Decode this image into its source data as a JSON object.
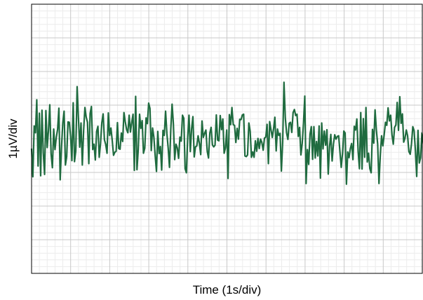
{
  "chart_data": {
    "type": "line",
    "title": "",
    "xlabel": "Time (1s/div)",
    "ylabel": "1µV/div",
    "grid": true,
    "major_divisions": {
      "x": 10,
      "y": 8
    },
    "minor_per_major": 5,
    "xlim": [
      0,
      10
    ],
    "ylim": [
      -4,
      4
    ],
    "colors": {
      "line": "#1f6b3f",
      "major_grid": "#c8c8c8",
      "minor_grid": "#ececec",
      "frame": "#000000"
    },
    "series": [
      {
        "x_step": 0.0333,
        "values": [
          -0.29,
          -1.13,
          0.38,
          0.18,
          1.16,
          -0.81,
          0.76,
          -1.1,
          0.85,
          -0.42,
          -1.06,
          0.84,
          -0.26,
          0.25,
          1.01,
          -0.45,
          -0.86,
          0.29,
          -0.32,
          0.04,
          0.28,
          0.91,
          -1.22,
          -0.25,
          0.48,
          0.82,
          -0.78,
          -0.53,
          0.5,
          0.49,
          0.07,
          -0.65,
          1.07,
          -0.68,
          -0.36,
          1.55,
          0.64,
          -0.25,
          0.47,
          -0.78,
          0.24,
          0.93,
          0.64,
          0.49,
          -0.74,
          0.75,
          0.96,
          -0.32,
          -0.16,
          -0.63,
          0.22,
          0.37,
          -0.55,
          -0.14,
          0.48,
          0.74,
          -0.03,
          -0.17,
          -0.43,
          0.77,
          0.1,
          0.32,
          -0.05,
          -0.49,
          -0.4,
          -0.37,
          0.48,
          -0.29,
          -0.31,
          0.17,
          -0.08,
          0.78,
          0.51,
          0.28,
          0.18,
          0.7,
          0.2,
          0.49,
          0.73,
          -0.94,
          1.26,
          -0.92,
          -0.32,
          0.73,
          0.31,
          0.54,
          -0.43,
          -0.28,
          0.62,
          0.45,
          1.06,
          0.9,
          -0.35,
          0.32,
          0.05,
          -0.5,
          -0.97,
          0.22,
          -0.44,
          -0.23,
          -0.93,
          0.25,
          0.1,
          0.82,
          0.16,
          -0.28,
          -0.85,
          0.28,
          1.03,
          0.44,
          -0.62,
          -0.16,
          -0.27,
          -0.58,
          0.05,
          -0.07,
          0.7,
          0.61,
          -0.89,
          -1.01,
          0.06,
          0.7,
          -0.38,
          0.3,
          0.66,
          -0.54,
          -0.24,
          -0.21,
          0.09,
          -0.14,
          -0.47,
          0.53,
          0.04,
          0.16,
          0.26,
          -0.37,
          -0.57,
          0.17,
          0.34,
          -0.18,
          -0.24,
          -0.19,
          0.71,
          -0.04,
          -0.06,
          0.69,
          0.27,
          0.59,
          -0.43,
          -0.27,
          0.26,
          -1.18,
          0.72,
          0.42,
          0.93,
          0.42,
          0.4,
          -0.11,
          0.31,
          -0.01,
          0.58,
          0.57,
          0.71,
          0.73,
          -0.51,
          -0.53,
          -0.48,
          0.47,
          0.23,
          -0.55,
          -0.39,
          -0.55,
          -0.06,
          -0.37,
          0.01,
          -0.29,
          -0.01,
          -0.11,
          -0.34,
          0.02,
          0.05,
          0.43,
          -0.74,
          0.51,
          0.27,
          0.04,
          0.3,
          0.64,
          -0.36,
          0.29,
          0.1,
          0.16,
          -0.96,
          -0.1,
          1.68,
          0.63,
          0.17,
          -0.02,
          0.46,
          0.49,
          0.19,
          0.78,
          0.87,
          0.69,
          0.73,
          0.07,
          0.34,
          -0.48,
          -0.14,
          0.47,
          1.27,
          -1.33,
          -0.32,
          -0.76,
          0.14,
          0.36,
          -0.61,
          0.36,
          -0.57,
          -0.08,
          -0.51,
          0.38,
          -1.17,
          0.47,
          -0.3,
          0.23,
          -0.19,
          0.27,
          -1.05,
          -0.23,
          0.13,
          -0.66,
          -0.16,
          0.12,
          -0.01,
          0.07,
          0.09,
          -0.38,
          -0.85,
          -0.43,
          0.23,
          0.17,
          -1.35,
          -0.39,
          -0.56,
          -0.29,
          -0.14,
          -0.62,
          0.37,
          0.26,
          0.59,
          -0.38,
          -0.89,
          0.78,
          -0.9,
          0.6,
          -0.55,
          0.93,
          -0.69,
          -0.43,
          -0.89,
          -1.01,
          0.28,
          -0.13,
          0.86,
          0.26,
          -0.16,
          -1.33,
          -0.5,
          0.09,
          -0.21,
          0.12,
          0.49,
          0.4,
          0.92,
          0.53,
          0.7,
          0.12,
          -0.16,
          0.34,
          0.41,
          1.08,
          0.25,
          1.25,
          0.46,
          0.74,
          -0.1,
          0.02,
          0.26,
          0.09,
          -0.38,
          -0.46,
          -0.15,
          0.36,
          0.24,
          -0.35,
          -1.12,
          0.25,
          -0.72,
          -0.56,
          0.17,
          -0.04,
          -0.34,
          0.62,
          -0.52,
          0.0,
          0.11,
          0.21,
          0.42,
          -0.26,
          -0.07,
          -0.39,
          0.77,
          -0.14,
          -0.27,
          1.13,
          0.89,
          -0.73,
          -0.37,
          0.5,
          0.6,
          1.2,
          0.95,
          0.62,
          0.12,
          0.51,
          0.71,
          1.11,
          0.61,
          1.82,
          -0.35,
          -0.18,
          0.2,
          0.98,
          -0.82,
          0.38,
          -0.04,
          0.42,
          -0.57,
          0.33,
          0.26,
          0.24,
          0.18,
          0.09,
          0.45,
          0.04,
          0.9,
          0.38,
          0.41,
          -0.24,
          0.08,
          0.48,
          -1.04,
          0.35,
          0.11,
          -0.54,
          -0.73,
          -1.1,
          0.53,
          0.26,
          -0.72,
          -0.33,
          -0.07,
          -0.39,
          1.12,
          0.46,
          -0.9,
          -1.28,
          -0.99,
          -0.35,
          1.01,
          0.24,
          0.3,
          -0.47,
          -0.21,
          -0.02,
          -0.65,
          -0.43,
          0.09,
          -1.14,
          -0.38,
          0.93,
          0.68,
          -0.47,
          0.53,
          0.12,
          -0.64,
          1.26,
          0.27,
          -0.23,
          1.79,
          0.14,
          0.57,
          -0.2,
          0.49,
          -0.63,
          0.05,
          0.05,
          0.24,
          0.39,
          -0.82,
          1.15,
          -0.18
        ]
      }
    ]
  }
}
